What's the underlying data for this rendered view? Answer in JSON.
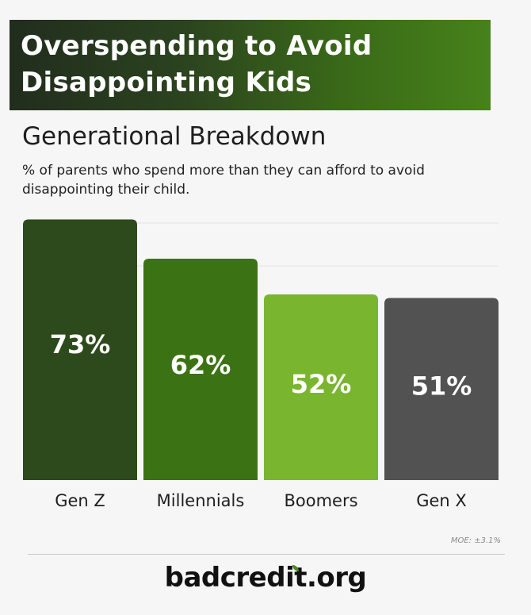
{
  "banner": {
    "title": "Overspending to Avoid Disappointing Kids"
  },
  "subtitle": "Generational Breakdown",
  "description": "% of parents who spend more than they can afford to avoid disappointing their child.",
  "footer": {
    "moe": "MOE: ±3.1%",
    "logo": "badcredit.org"
  },
  "colors": {
    "gen_z": "#2d4a1c",
    "millennials": "#3b7314",
    "boomers": "#7ab530",
    "gen_x": "#525252",
    "grid": "#e2e2e2"
  },
  "chart_data": {
    "type": "bar",
    "title": "Generational Breakdown",
    "categories": [
      "Gen Z",
      "Millennials",
      "Boomers",
      "Gen X"
    ],
    "values": [
      73,
      62,
      52,
      51
    ],
    "data_labels": [
      "73%",
      "62%",
      "52%",
      "51%"
    ],
    "unit": "%",
    "ylim": [
      0,
      80
    ],
    "grid": true,
    "legend": "none"
  }
}
